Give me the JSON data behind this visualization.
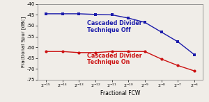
{
  "x_labels": [
    "$2^{-15}$",
    "$2^{-14}$",
    "$2^{-13}$",
    "$2^{-12}$",
    "$2^{-11}$",
    "$2^{-10}$",
    "$2^{-9}$",
    "$2^{-8}$",
    "$2^{-7}$",
    "$2^{-6}$"
  ],
  "x_values": [
    0,
    1,
    2,
    3,
    4,
    5,
    6,
    7,
    8,
    9
  ],
  "blue_values": [
    -44.5,
    -44.5,
    -44.5,
    -44.8,
    -45.0,
    -46.5,
    -48.5,
    -53.0,
    -57.5,
    -63.5
  ],
  "red_values": [
    -62.0,
    -62.0,
    -62.5,
    -62.5,
    -62.0,
    -62.0,
    -62.0,
    -65.5,
    -68.5,
    -71.0
  ],
  "blue_color": "#1a1aaa",
  "red_color": "#cc1111",
  "ylim": [
    -75,
    -40
  ],
  "yticks": [
    -75,
    -70,
    -65,
    -60,
    -55,
    -50,
    -45,
    -40
  ],
  "ylabel": "Fractional Spur [dBc]",
  "xlabel": "Fractional FCW",
  "blue_label_line1": "Cascaded Divider",
  "blue_label_line2": "Technique Off",
  "red_label_line1": "Cascaded Divider",
  "red_label_line2": "Technique On",
  "bg_color": "#f0ede8"
}
